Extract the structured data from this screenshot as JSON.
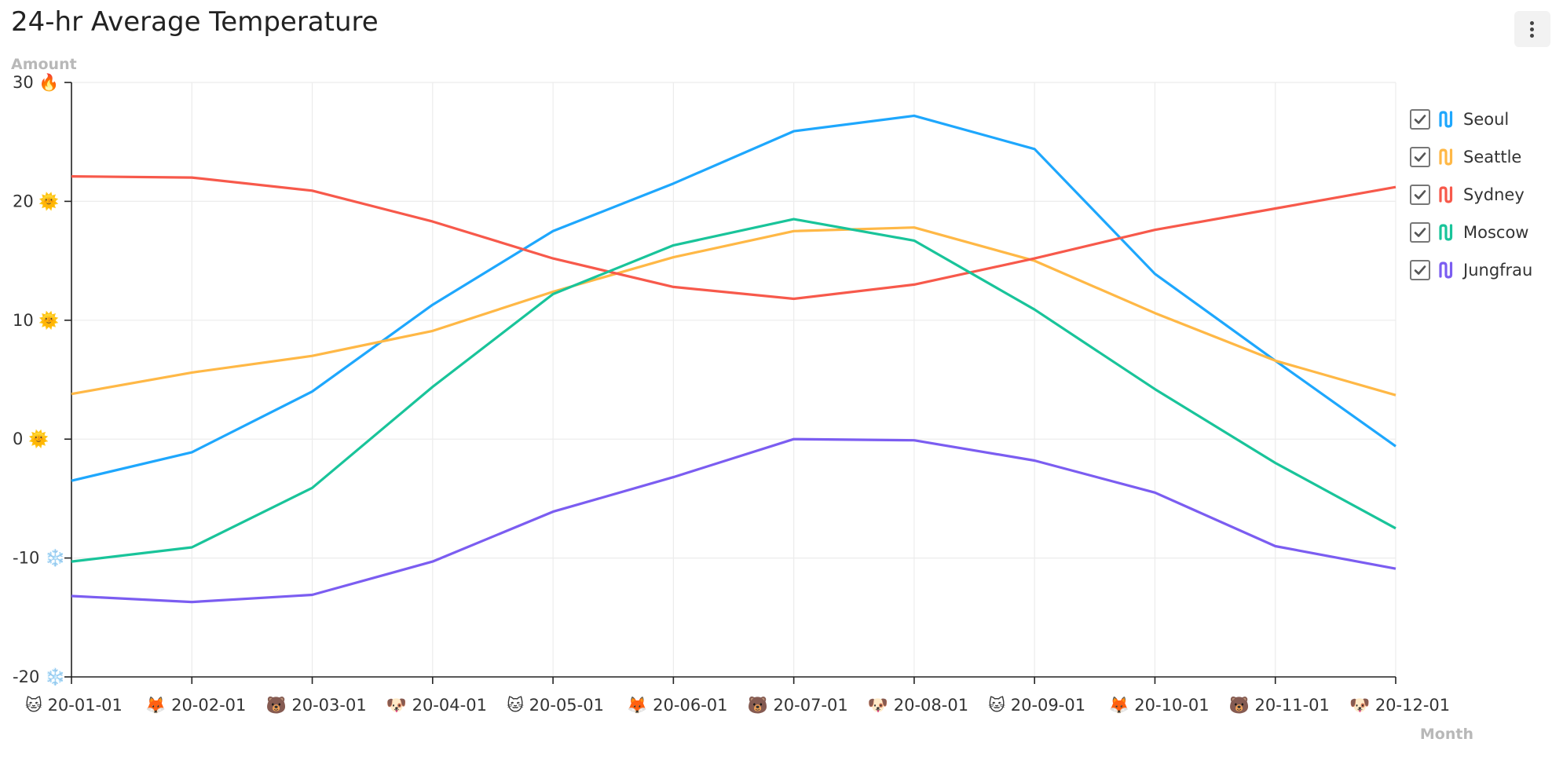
{
  "header": {
    "title": "24-hr Average Temperature",
    "menu_icon": "kebab-menu-icon"
  },
  "chart_data": {
    "type": "line",
    "title": "24-hr Average Temperature",
    "xlabel": "Month",
    "ylabel": "Amount",
    "ylim": [
      -20,
      30
    ],
    "yticks": [
      30,
      20,
      10,
      0,
      -10,
      -20
    ],
    "ytick_icons": [
      "🔥",
      "🌞",
      "🌞",
      "🌞",
      "❄️",
      "❄️"
    ],
    "categories": [
      "20-01-01",
      "20-02-01",
      "20-03-01",
      "20-04-01",
      "20-05-01",
      "20-06-01",
      "20-07-01",
      "20-08-01",
      "20-09-01",
      "20-10-01",
      "20-11-01",
      "20-12-01"
    ],
    "category_icons": [
      "🐱",
      "🦊",
      "🐻",
      "🐶",
      "🐱",
      "🦊",
      "🐻",
      "🐶",
      "🐱",
      "🦊",
      "🐻",
      "🐶"
    ],
    "grid": true,
    "legend_position": "right",
    "series": [
      {
        "name": "Seoul",
        "color": "#1ea7fd",
        "values": [
          -3.5,
          -1.1,
          4.0,
          11.3,
          17.5,
          21.5,
          25.9,
          27.2,
          24.4,
          13.9,
          6.6,
          -0.6
        ]
      },
      {
        "name": "Seattle",
        "color": "#ffb846",
        "values": [
          3.8,
          5.6,
          7.0,
          9.1,
          12.4,
          15.3,
          17.5,
          17.8,
          15.0,
          10.6,
          6.6,
          3.7
        ]
      },
      {
        "name": "Sydney",
        "color": "#f7594b",
        "values": [
          22.1,
          22.0,
          20.9,
          18.3,
          15.2,
          12.8,
          11.8,
          13.0,
          15.2,
          17.6,
          19.4,
          21.2
        ]
      },
      {
        "name": "Moscow",
        "color": "#19c49a",
        "values": [
          -10.3,
          -9.1,
          -4.1,
          4.4,
          12.2,
          16.3,
          18.5,
          16.7,
          10.9,
          4.2,
          -2.0,
          -7.5
        ]
      },
      {
        "name": "Jungfrau",
        "color": "#7b5df1",
        "values": [
          -13.2,
          -13.7,
          -13.1,
          -10.3,
          -6.1,
          -3.2,
          0.0,
          -0.1,
          -1.8,
          -4.5,
          -9.0,
          -10.9
        ]
      }
    ]
  }
}
